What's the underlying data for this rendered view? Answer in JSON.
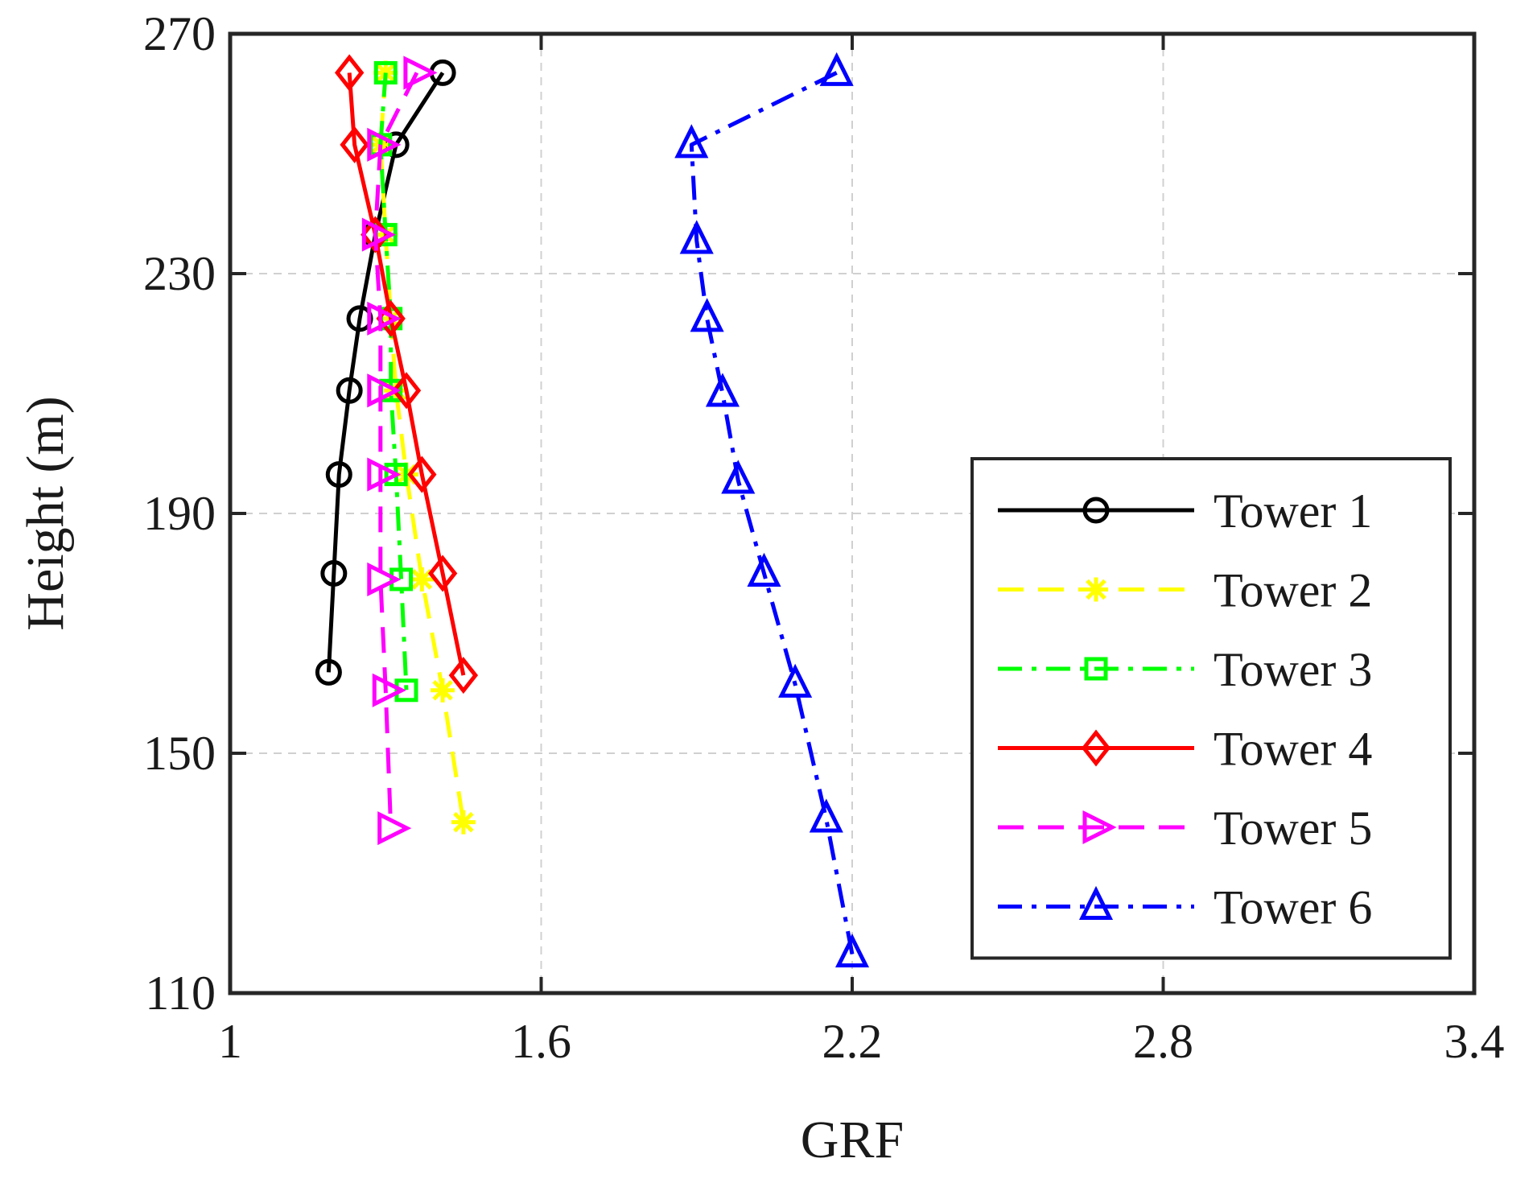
{
  "chart_data": {
    "type": "line",
    "title": "",
    "xlabel": "GRF",
    "ylabel": "Height (m)",
    "xlim": [
      1,
      3.4
    ],
    "ylim": [
      110,
      270
    ],
    "xticks": [
      1,
      1.6,
      2.2,
      2.8,
      3.4
    ],
    "xtick_labels": [
      "1",
      "1.6",
      "2.2",
      "2.8",
      "3.4"
    ],
    "yticks": [
      110,
      150,
      190,
      230,
      270
    ],
    "ytick_labels": [
      "110",
      "150",
      "190",
      "230",
      "270"
    ],
    "grid": true,
    "legend_position": "bottom-right",
    "series": [
      {
        "name": "Tower 1",
        "color": "#000000",
        "line_style": "solid",
        "marker": "circle",
        "points": [
          {
            "x": 1.41,
            "y": 263.5
          },
          {
            "x": 1.32,
            "y": 251.5
          },
          {
            "x": 1.28,
            "y": 236.5
          },
          {
            "x": 1.25,
            "y": 222.5
          },
          {
            "x": 1.23,
            "y": 210.5
          },
          {
            "x": 1.21,
            "y": 196.5
          },
          {
            "x": 1.2,
            "y": 180.0
          },
          {
            "x": 1.19,
            "y": 163.5
          }
        ]
      },
      {
        "name": "Tower 2",
        "color": "#ffff00",
        "line_style": "dashed",
        "marker": "asterisk",
        "points": [
          {
            "x": 1.3,
            "y": 263.5
          },
          {
            "x": 1.29,
            "y": 251.5
          },
          {
            "x": 1.3,
            "y": 236.5
          },
          {
            "x": 1.31,
            "y": 222.5
          },
          {
            "x": 1.32,
            "y": 210.5
          },
          {
            "x": 1.34,
            "y": 196.5
          },
          {
            "x": 1.37,
            "y": 179.0
          },
          {
            "x": 1.41,
            "y": 160.5
          },
          {
            "x": 1.45,
            "y": 138.5
          }
        ]
      },
      {
        "name": "Tower 3",
        "color": "#00ff00",
        "line_style": "dashdot",
        "marker": "square",
        "points": [
          {
            "x": 1.3,
            "y": 263.5
          },
          {
            "x": 1.29,
            "y": 251.5
          },
          {
            "x": 1.3,
            "y": 236.5
          },
          {
            "x": 1.31,
            "y": 222.5
          },
          {
            "x": 1.31,
            "y": 210.5
          },
          {
            "x": 1.32,
            "y": 196.5
          },
          {
            "x": 1.33,
            "y": 179.0
          },
          {
            "x": 1.34,
            "y": 160.5
          }
        ]
      },
      {
        "name": "Tower 4",
        "color": "#ff0000",
        "line_style": "solid",
        "marker": "diamond",
        "points": [
          {
            "x": 1.23,
            "y": 263.5
          },
          {
            "x": 1.24,
            "y": 251.5
          },
          {
            "x": 1.28,
            "y": 236.5
          },
          {
            "x": 1.31,
            "y": 222.5
          },
          {
            "x": 1.34,
            "y": 210.5
          },
          {
            "x": 1.37,
            "y": 196.5
          },
          {
            "x": 1.41,
            "y": 180.0
          },
          {
            "x": 1.45,
            "y": 163.0
          }
        ]
      },
      {
        "name": "Tower 5",
        "color": "#ff00ff",
        "line_style": "dashed",
        "marker": "triangle-right",
        "points": [
          {
            "x": 1.36,
            "y": 263.5
          },
          {
            "x": 1.29,
            "y": 251.5
          },
          {
            "x": 1.28,
            "y": 236.5
          },
          {
            "x": 1.29,
            "y": 222.5
          },
          {
            "x": 1.29,
            "y": 210.5
          },
          {
            "x": 1.29,
            "y": 196.5
          },
          {
            "x": 1.29,
            "y": 179.0
          },
          {
            "x": 1.3,
            "y": 160.5
          },
          {
            "x": 1.31,
            "y": 137.5
          }
        ]
      },
      {
        "name": "Tower 6",
        "color": "#0000ff",
        "line_style": "dashdot",
        "marker": "triangle-up",
        "points": [
          {
            "x": 2.17,
            "y": 263.5
          },
          {
            "x": 1.89,
            "y": 251.5
          },
          {
            "x": 1.9,
            "y": 235.5
          },
          {
            "x": 1.92,
            "y": 222.5
          },
          {
            "x": 1.95,
            "y": 210.0
          },
          {
            "x": 1.98,
            "y": 195.5
          },
          {
            "x": 2.03,
            "y": 180.0
          },
          {
            "x": 2.09,
            "y": 161.5
          },
          {
            "x": 2.15,
            "y": 139.0
          },
          {
            "x": 2.2,
            "y": 116.5
          }
        ]
      }
    ]
  }
}
